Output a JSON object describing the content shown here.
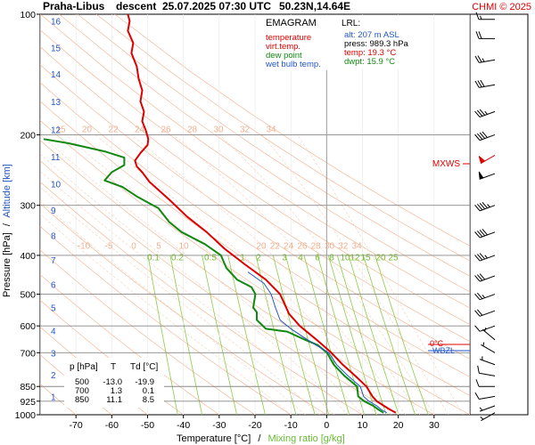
{
  "header": {
    "station": "Praha-Libus",
    "phase": "descent",
    "datetime": "25.07.2025 07:30 UTC",
    "coords": "50.23N,14.64E",
    "copyright": "CHMI © 2025"
  },
  "legend": {
    "title": "EMAGRAM",
    "items": [
      {
        "label": "temperature",
        "color": "#dd0000"
      },
      {
        "label": "virt.temp.",
        "color": "#dd0000"
      },
      {
        "label": "dew point",
        "color": "#118811"
      },
      {
        "label": "wet bulb temp.",
        "color": "#2255cc"
      }
    ]
  },
  "lrl": {
    "title": "LRL:",
    "alt": "alt: 207 m ASL",
    "press": "press: 989.3 hPa",
    "temp": "temp: 19.3 °C",
    "dwpt": "dwpt: 15.9 °C"
  },
  "table": {
    "headers": [
      "p [hPa]",
      "T",
      "Td [°C]"
    ],
    "rows": [
      [
        "500",
        "-13.0",
        "-19.9"
      ],
      [
        "700",
        "1.3",
        "0.1"
      ],
      [
        "850",
        "11.1",
        "8.5"
      ]
    ]
  },
  "markers": {
    "mxws": "MXWS",
    "wbzl": "WBZL",
    "tzl": "0°C"
  },
  "axes": {
    "ylabel_pressure": "Pressure [hPa]",
    "ylabel_sep": "/",
    "ylabel_altitude": "Altitude [km]",
    "xlabel_temp": "Temperature [°C]",
    "xlabel_sep": "/",
    "xlabel_mix": "Mixing ratio [g/kg]"
  },
  "chart_data": {
    "type": "line",
    "xlim": [
      -80,
      40
    ],
    "ylim": [
      1000,
      100
    ],
    "y_scale": "log",
    "x_ticks": [
      -70,
      -60,
      -50,
      -40,
      -30,
      -20,
      -10,
      0,
      10,
      20,
      30
    ],
    "pressure_ticks": [
      100,
      200,
      300,
      400,
      500,
      600,
      700,
      850,
      925,
      1000
    ],
    "pressure_lines": [
      200,
      300,
      400,
      500,
      600,
      700,
      850,
      925
    ],
    "altitude_ticks": [
      {
        "km": 1,
        "p": 900
      },
      {
        "km": 2,
        "p": 795
      },
      {
        "km": 3,
        "p": 701
      },
      {
        "km": 4,
        "p": 616
      },
      {
        "km": 5,
        "p": 540
      },
      {
        "km": 6,
        "p": 472
      },
      {
        "km": 7,
        "p": 411
      },
      {
        "km": 8,
        "p": 357
      },
      {
        "km": 9,
        "p": 308
      },
      {
        "km": 10,
        "p": 265
      },
      {
        "km": 11,
        "p": 227
      },
      {
        "km": 12,
        "p": 194
      },
      {
        "km": 13,
        "p": 165
      },
      {
        "km": 14,
        "p": 141
      },
      {
        "km": 15,
        "p": 121
      },
      {
        "km": 16,
        "p": 104
      }
    ],
    "dry_adiabat_labels": [
      {
        "t": -15,
        "p": 200,
        "text": "15"
      },
      {
        "t": -20,
        "p": 200,
        "text": "20"
      },
      {
        "t": -22,
        "p": 200,
        "text": "22"
      },
      {
        "t": -24,
        "p": 200,
        "text": "24"
      },
      {
        "t": -26,
        "p": 200,
        "text": "26"
      },
      {
        "t": -28,
        "p": 200,
        "text": "28"
      },
      {
        "t": -30,
        "p": 200,
        "text": "30"
      },
      {
        "t": -32,
        "p": 200,
        "text": "32"
      },
      {
        "t": -34,
        "p": 200,
        "text": "34"
      }
    ],
    "moist_labels_upper": [
      "-10",
      "-5",
      "0",
      "5",
      "10"
    ],
    "moist_labels_lower": [
      "20",
      "22",
      "24",
      "26",
      "28",
      "30",
      "32",
      "34"
    ],
    "mixing_ratio_labels": [
      "0.1",
      "0.2",
      "0.5",
      "1",
      "2",
      "3",
      "4",
      "6",
      "8",
      "10",
      "12",
      "15",
      "20",
      "25"
    ],
    "series": [
      {
        "name": "temperature",
        "color": "#dd0000",
        "points": [
          [
            19.3,
            989
          ],
          [
            17.6,
            970
          ],
          [
            16,
            950
          ],
          [
            14,
            925
          ],
          [
            12.8,
            900
          ],
          [
            11.1,
            850
          ],
          [
            8,
            800
          ],
          [
            4.5,
            750
          ],
          [
            1.3,
            700
          ],
          [
            -2.8,
            650
          ],
          [
            -7.5,
            600
          ],
          [
            -10.5,
            560
          ],
          [
            -13,
            500
          ],
          [
            -17,
            460
          ],
          [
            -23,
            420
          ],
          [
            -28.5,
            385
          ],
          [
            -33.5,
            350
          ],
          [
            -39,
            320
          ],
          [
            -44,
            290
          ],
          [
            -49.5,
            262
          ],
          [
            -51.5,
            248
          ],
          [
            -53,
            240
          ],
          [
            -53.5,
            232
          ],
          [
            -52,
            222
          ],
          [
            -50,
            212
          ],
          [
            -49.8,
            205
          ],
          [
            -50.5,
            195
          ],
          [
            -51.5,
            185
          ],
          [
            -51,
            175
          ],
          [
            -52,
            165
          ],
          [
            -51.5,
            155
          ],
          [
            -52.5,
            145
          ],
          [
            -53,
            135
          ],
          [
            -54.5,
            125
          ],
          [
            -54,
            118
          ],
          [
            -55.5,
            110
          ],
          [
            -55,
            104
          ],
          [
            -55.5,
            100
          ]
        ]
      },
      {
        "name": "dew point",
        "color": "#118811",
        "points": [
          [
            15.9,
            989
          ],
          [
            14.4,
            970
          ],
          [
            13,
            950
          ],
          [
            10.5,
            925
          ],
          [
            8.8,
            900
          ],
          [
            8.5,
            850
          ],
          [
            5,
            800
          ],
          [
            2,
            750
          ],
          [
            0.1,
            700
          ],
          [
            -2.5,
            670
          ],
          [
            -6,
            650
          ],
          [
            -11,
            620
          ],
          [
            -17,
            610
          ],
          [
            -19.5,
            580
          ],
          [
            -19.5,
            555
          ],
          [
            -20.5,
            540
          ],
          [
            -19.9,
            500
          ],
          [
            -21,
            480
          ],
          [
            -25,
            460
          ],
          [
            -28,
            430
          ],
          [
            -29.5,
            400
          ],
          [
            -34,
            375
          ],
          [
            -40.5,
            350
          ],
          [
            -44,
            330
          ],
          [
            -47,
            305
          ],
          [
            -53,
            285
          ],
          [
            -57,
            270
          ],
          [
            -62,
            260
          ],
          [
            -60,
            248
          ],
          [
            -56.5,
            238
          ],
          [
            -56.5,
            228
          ],
          [
            -62,
            220
          ],
          [
            -72,
            210
          ],
          [
            -79,
            205
          ]
        ]
      },
      {
        "name": "wet bulb temp.",
        "color": "#2255cc",
        "points": [
          [
            16.8,
            989
          ],
          [
            15.2,
            970
          ],
          [
            14,
            950
          ],
          [
            11.8,
            925
          ],
          [
            10.3,
            900
          ],
          [
            9.4,
            850
          ],
          [
            6,
            800
          ],
          [
            2.8,
            750
          ],
          [
            0.6,
            700
          ],
          [
            -3,
            670
          ],
          [
            -6.5,
            640
          ],
          [
            -10,
            610
          ],
          [
            -13,
            580
          ],
          [
            -14.3,
            540
          ],
          [
            -15.5,
            500
          ],
          [
            -17.5,
            470
          ],
          [
            -22,
            440
          ]
        ]
      }
    ],
    "wind_barbs": [
      {
        "p": 988,
        "dir": 240,
        "spd": 5
      },
      {
        "p": 950,
        "dir": 250,
        "spd": 5
      },
      {
        "p": 900,
        "dir": 260,
        "spd": 10
      },
      {
        "p": 850,
        "dir": 270,
        "spd": 10
      },
      {
        "p": 800,
        "dir": 280,
        "spd": 10
      },
      {
        "p": 750,
        "dir": 290,
        "spd": 5
      },
      {
        "p": 700,
        "dir": 300,
        "spd": 5
      },
      {
        "p": 650,
        "dir": 310,
        "spd": 5
      },
      {
        "p": 600,
        "dir": 250,
        "spd": 10
      },
      {
        "p": 550,
        "dir": 250,
        "spd": 20
      },
      {
        "p": 500,
        "dir": 250,
        "spd": 25
      },
      {
        "p": 450,
        "dir": 250,
        "spd": 30
      },
      {
        "p": 400,
        "dir": 250,
        "spd": 35
      },
      {
        "p": 350,
        "dir": 250,
        "spd": 40
      },
      {
        "p": 300,
        "dir": 250,
        "spd": 45
      },
      {
        "p": 250,
        "dir": 250,
        "spd": 50
      },
      {
        "p": 225,
        "dir": 240,
        "spd": 60,
        "mx": true
      },
      {
        "p": 200,
        "dir": 250,
        "spd": 40
      },
      {
        "p": 175,
        "dir": 250,
        "spd": 35
      },
      {
        "p": 150,
        "dir": 260,
        "spd": 30
      },
      {
        "p": 130,
        "dir": 260,
        "spd": 25
      },
      {
        "p": 115,
        "dir": 270,
        "spd": 20
      },
      {
        "p": 103,
        "dir": 270,
        "spd": 15
      }
    ]
  }
}
